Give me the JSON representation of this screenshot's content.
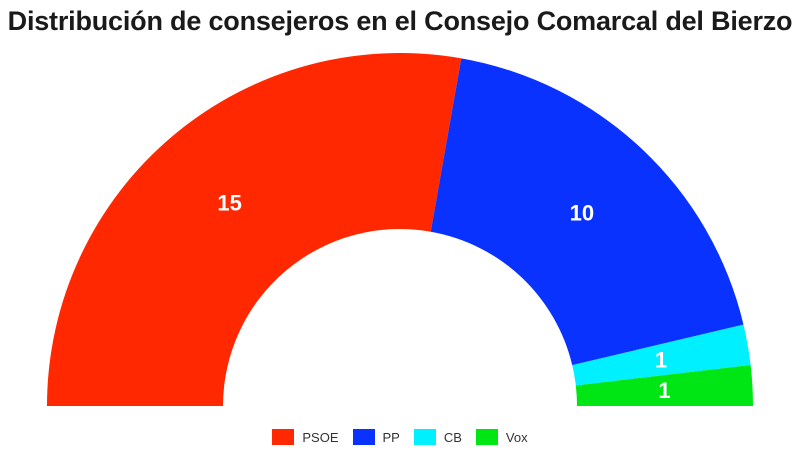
{
  "chart_data": {
    "type": "pie",
    "subtype": "parliament-semicircle",
    "title": "Distribución de consejeros en el Consejo Comarcal del Bierzo",
    "total": 27,
    "series": [
      {
        "name": "PSOE",
        "value": 15,
        "label": "15",
        "color": "#ff2800"
      },
      {
        "name": "PP",
        "value": 10,
        "label": "10",
        "color": "#0a32ff"
      },
      {
        "name": "CB",
        "value": 1,
        "label": "1",
        "color": "#00f0ff"
      },
      {
        "name": "Vox",
        "value": 1,
        "label": "1",
        "color": "#00e614"
      }
    ],
    "legend_position": "bottom"
  }
}
